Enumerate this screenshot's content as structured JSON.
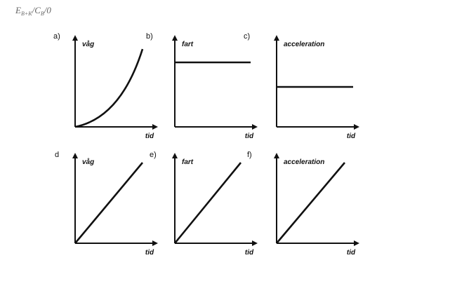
{
  "header": {
    "parts": [
      "E",
      "B+K",
      "/C",
      "B",
      "/0"
    ]
  },
  "panels": [
    {
      "label": "a)",
      "y_label": "våg",
      "x_label": "tid"
    },
    {
      "label": "b)",
      "y_label": "fart",
      "x_label": "tid"
    },
    {
      "label": "c)",
      "y_label": "acceleration",
      "x_label": "tid"
    },
    {
      "label": "d",
      "y_label": "våg",
      "x_label": "tid"
    },
    {
      "label": "e)",
      "y_label": "fart",
      "x_label": "tid"
    },
    {
      "label": "f)",
      "y_label": "acceleration",
      "x_label": "tid"
    }
  ]
}
